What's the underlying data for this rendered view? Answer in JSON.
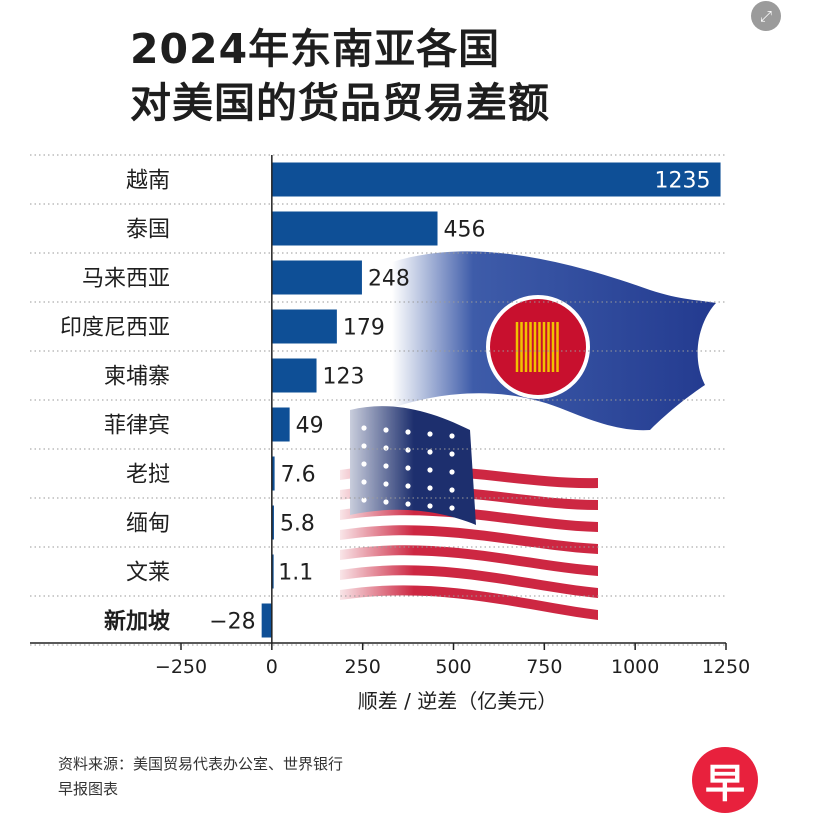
{
  "expand_icon": "expand-icon",
  "title": {
    "line1": "2024年东南亚各国",
    "line2": "对美国的货品贸易差额"
  },
  "chart_data": {
    "type": "bar",
    "orientation": "horizontal",
    "categories": [
      "越南",
      "泰国",
      "马来西亚",
      "印度尼西亚",
      "柬埔寨",
      "菲律宾",
      "老挝",
      "缅甸",
      "文莱",
      "新加坡"
    ],
    "values": [
      1235,
      456,
      248,
      179,
      123,
      49,
      7.6,
      5.8,
      1.1,
      -28
    ],
    "value_labels": [
      "1235",
      "456",
      "248",
      "179",
      "123",
      "49",
      "7.6",
      "5.8",
      "1.1",
      "−28"
    ],
    "bold_category": "新加坡",
    "xlabel": "顺差 / 逆差（亿美元）",
    "xlim": [
      -250,
      1250
    ],
    "xticks": [
      -250,
      0,
      250,
      500,
      750,
      1000,
      1250
    ],
    "xtick_labels": [
      "−250",
      "0",
      "250",
      "500",
      "750",
      "1000",
      "1250"
    ],
    "bar_color": "#0e4f96",
    "grid": false
  },
  "footer": {
    "source": "资料来源：美国贸易代表办公室、世界银行",
    "credit": "早报图表"
  },
  "logo": {
    "text": "早",
    "color": "#e8213d"
  }
}
